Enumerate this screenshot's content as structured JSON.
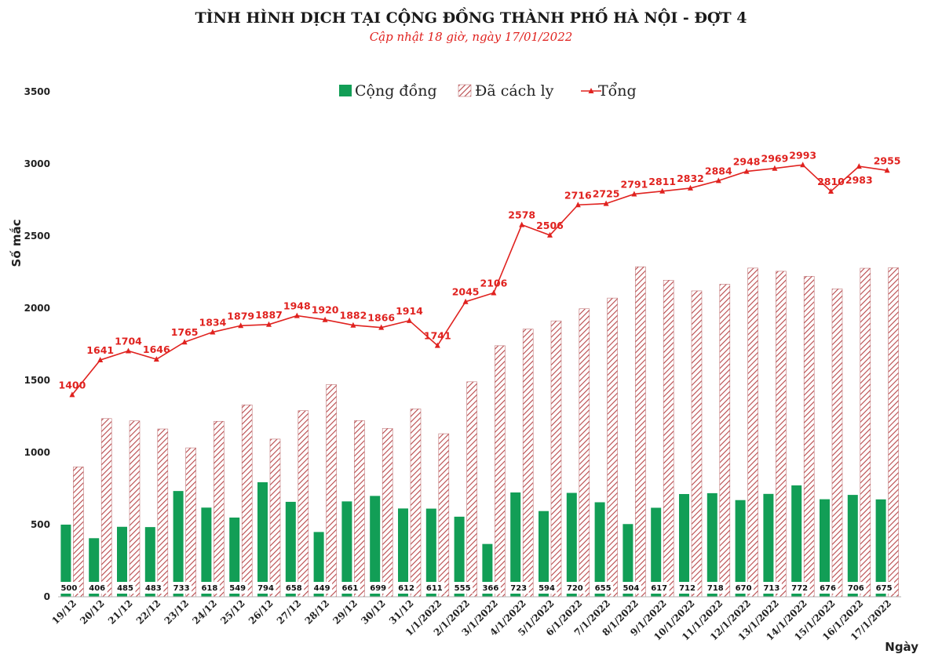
{
  "title": "TÌNH HÌNH DỊCH TẠI CỘNG ĐỒNG THÀNH PHỐ HÀ NỘI - ĐỢT 4",
  "subtitle": "Cập nhật 18 giờ, ngày 17/01/2022",
  "colors": {
    "community": "#129e56",
    "isolated": "#b8474a",
    "total": "#e0221f"
  },
  "chart_data": {
    "type": "bar",
    "title": "TÌNH HÌNH DỊCH TẠI CỘNG ĐỒNG THÀNH PHỐ HÀ NỘI - ĐỢT 4",
    "xlabel": "Ngày",
    "ylabel": "Số mắc",
    "ylim": [
      0,
      3500
    ],
    "yticks": [
      0,
      500,
      1000,
      1500,
      2000,
      2500,
      3000,
      3500
    ],
    "grid": false,
    "legend_position": "top-center",
    "categories": [
      "19/12",
      "20/12",
      "21/12",
      "22/12",
      "23/12",
      "24/12",
      "25/12",
      "26/12",
      "27/12",
      "28/12",
      "29/12",
      "30/12",
      "31/12",
      "1/1/2022",
      "2/1/2022",
      "3/1/2022",
      "4/1/2022",
      "5/1/2022",
      "6/1/2022",
      "7/1/2022",
      "8/1/2022",
      "9/1/2022",
      "10/1/2022",
      "11/1/2022",
      "12/1/2022",
      "13/1/2022",
      "14/1/2022",
      "15/1/2022",
      "16/1/2022",
      "17/1/2022"
    ],
    "series": [
      {
        "name": "Cộng đồng",
        "type": "bar",
        "values": [
          500,
          406,
          485,
          483,
          733,
          618,
          549,
          794,
          658,
          449,
          661,
          699,
          612,
          611,
          555,
          366,
          723,
          594,
          720,
          655,
          504,
          617,
          712,
          718,
          670,
          713,
          772,
          676,
          706,
          675
        ]
      },
      {
        "name": "Đã cách ly",
        "type": "bar",
        "values": [
          900,
          1235,
          1219,
          1163,
          1032,
          1216,
          1330,
          1093,
          1290,
          1471,
          1221,
          1167,
          1302,
          1130,
          1490,
          1740,
          1855,
          1912,
          1996,
          2070,
          2287,
          2194,
          2120,
          2166,
          2278,
          2256,
          2221,
          2134,
          2277,
          2280
        ]
      },
      {
        "name": "Tổng",
        "type": "line",
        "values": [
          1400,
          1641,
          1704,
          1646,
          1765,
          1834,
          1879,
          1887,
          1948,
          1920,
          1882,
          1866,
          1914,
          1741,
          2045,
          2106,
          2578,
          2506,
          2716,
          2725,
          2791,
          2811,
          2832,
          2884,
          2948,
          2969,
          2993,
          2810,
          2983,
          2955
        ]
      }
    ]
  }
}
